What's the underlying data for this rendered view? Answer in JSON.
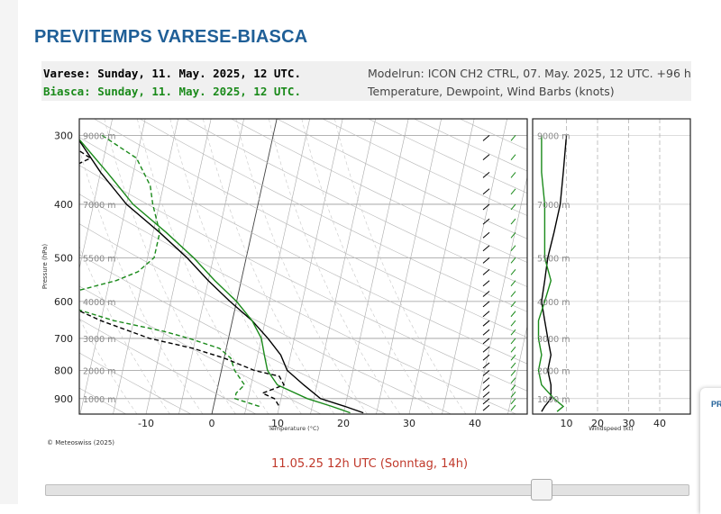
{
  "page": {
    "title": "PREVITEMPS VARESE-BIASCA"
  },
  "header": {
    "line1": "Varese: Sunday, 11. May. 2025, 12 UTC.",
    "line2": "Biasca: Sunday, 11. May. 2025, 12 UTC.",
    "modelrun": "Modelrun: ICON CH2 CTRL, 07. May. 2025, 12 UTC. +96 h",
    "variables": "Temperature, Dewpoint, Wind Barbs (knots)"
  },
  "chart_data": {
    "type": "line",
    "y_axis_label": "Pressure (hPa)",
    "x_axis_label": "Temperature (°C)",
    "wind_axis_label": "Windspeed (kt)",
    "pressure_ticks": [
      300,
      400,
      500,
      600,
      700,
      800,
      900
    ],
    "altitude_labels": [
      "9000 m",
      "7000 m",
      "5500 m",
      "4000 m",
      "3000 m",
      "2000 m",
      "1000 m"
    ],
    "altitude_pressures": [
      300,
      400,
      500,
      600,
      700,
      800,
      900
    ],
    "temperature_ticks": [
      -10,
      0,
      10,
      20,
      30,
      40
    ],
    "windspeed_ticks": [
      10,
      20,
      30,
      40
    ],
    "pressure_range": [
      280,
      960
    ],
    "temperature_range": [
      -20,
      48
    ],
    "windspeed_range": [
      0,
      45
    ],
    "colors": {
      "varese": "#000000",
      "biasca": "#1a8a1a"
    },
    "series": [
      {
        "station": "Varese",
        "kind": "temperature",
        "points": [
          [
            300,
            -30
          ],
          [
            350,
            -25
          ],
          [
            400,
            -20
          ],
          [
            450,
            -14
          ],
          [
            500,
            -9
          ],
          [
            550,
            -5
          ],
          [
            600,
            -1
          ],
          [
            650,
            3
          ],
          [
            700,
            6
          ],
          [
            750,
            8.5
          ],
          [
            800,
            10
          ],
          [
            850,
            13
          ],
          [
            900,
            16
          ],
          [
            930,
            20
          ],
          [
            955,
            23
          ]
        ]
      },
      {
        "station": "Varese",
        "kind": "dewpoint",
        "points": [
          [
            300,
            -33
          ],
          [
            330,
            -27
          ],
          [
            360,
            -33
          ],
          [
            400,
            -36
          ],
          [
            450,
            -36
          ],
          [
            500,
            -35
          ],
          [
            550,
            -32
          ],
          [
            580,
            -30
          ],
          [
            600,
            -27
          ],
          [
            650,
            -20
          ],
          [
            700,
            -12
          ],
          [
            730,
            -5
          ],
          [
            760,
            0
          ],
          [
            800,
            5
          ],
          [
            820,
            9
          ],
          [
            850,
            10
          ],
          [
            880,
            7
          ],
          [
            900,
            9
          ],
          [
            930,
            10
          ]
        ]
      },
      {
        "station": "Biasca",
        "kind": "temperature",
        "points": [
          [
            300,
            -30
          ],
          [
            350,
            -24
          ],
          [
            400,
            -19
          ],
          [
            450,
            -13
          ],
          [
            500,
            -8
          ],
          [
            550,
            -4
          ],
          [
            600,
            0
          ],
          [
            650,
            3
          ],
          [
            700,
            5
          ],
          [
            750,
            6
          ],
          [
            800,
            7
          ],
          [
            850,
            9
          ],
          [
            900,
            14
          ],
          [
            930,
            18
          ],
          [
            955,
            21
          ]
        ]
      },
      {
        "station": "Biasca",
        "kind": "dewpoint",
        "points": [
          [
            300,
            -26
          ],
          [
            330,
            -20
          ],
          [
            370,
            -17
          ],
          [
            400,
            -16
          ],
          [
            450,
            -14
          ],
          [
            480,
            -14
          ],
          [
            500,
            -14
          ],
          [
            530,
            -16
          ],
          [
            550,
            -19
          ],
          [
            580,
            -26
          ],
          [
            600,
            -30
          ],
          [
            620,
            -24
          ],
          [
            650,
            -18
          ],
          [
            680,
            -10
          ],
          [
            700,
            -6
          ],
          [
            730,
            -1
          ],
          [
            760,
            1
          ],
          [
            800,
            2
          ],
          [
            850,
            4
          ],
          [
            880,
            3
          ],
          [
            900,
            3
          ],
          [
            930,
            7
          ]
        ]
      }
    ],
    "windspeed_series": [
      {
        "station": "Varese",
        "points": [
          [
            300,
            10
          ],
          [
            350,
            9
          ],
          [
            400,
            8
          ],
          [
            450,
            6
          ],
          [
            500,
            4
          ],
          [
            550,
            3
          ],
          [
            600,
            2
          ],
          [
            650,
            3
          ],
          [
            700,
            4
          ],
          [
            750,
            5
          ],
          [
            800,
            4
          ],
          [
            850,
            5
          ],
          [
            900,
            5
          ],
          [
            930,
            3
          ],
          [
            950,
            2
          ]
        ]
      },
      {
        "station": "Biasca",
        "points": [
          [
            300,
            2
          ],
          [
            350,
            2
          ],
          [
            400,
            3
          ],
          [
            450,
            3
          ],
          [
            500,
            3
          ],
          [
            550,
            5
          ],
          [
            600,
            3
          ],
          [
            650,
            1
          ],
          [
            700,
            1
          ],
          [
            750,
            2
          ],
          [
            800,
            1
          ],
          [
            850,
            2
          ],
          [
            900,
            6
          ],
          [
            930,
            9
          ],
          [
            950,
            7
          ]
        ]
      }
    ],
    "credit": "© Meteoswiss (2025)"
  },
  "timeline": {
    "label": "11.05.25 12h UTC (Sonntag, 14h)",
    "position": 0.78
  },
  "side_card": {
    "title": "PR"
  }
}
